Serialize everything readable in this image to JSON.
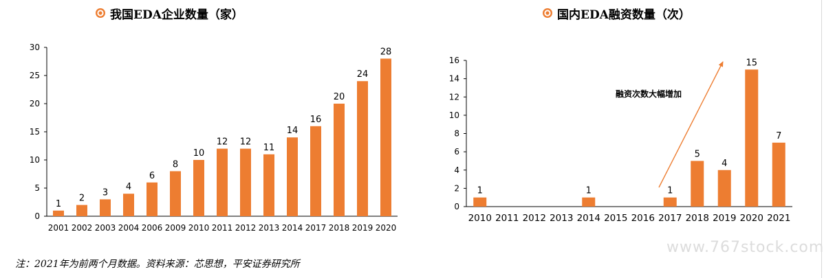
{
  "chart_data": [
    {
      "type": "bar",
      "title": "我国EDA企业数量（家）",
      "categories": [
        "2001",
        "2002",
        "2003",
        "2004",
        "2006",
        "2009",
        "2010",
        "2011",
        "2012",
        "2013",
        "2014",
        "2017",
        "2018",
        "2019",
        "2020"
      ],
      "values": [
        1,
        2,
        3,
        4,
        6,
        8,
        10,
        12,
        12,
        11,
        14,
        16,
        20,
        24,
        28
      ],
      "ylim": [
        0,
        30
      ],
      "yticks": [
        0,
        5,
        10,
        15,
        20,
        25,
        30
      ],
      "grid": false,
      "bar_color": "#ED7D31"
    },
    {
      "type": "bar",
      "title": "国内EDA融资数量（次）",
      "categories": [
        "2010",
        "2011",
        "2012",
        "2013",
        "2014",
        "2015",
        "2016",
        "2017",
        "2018",
        "2019",
        "2020",
        "2021"
      ],
      "values": [
        1,
        0,
        0,
        0,
        1,
        0,
        0,
        1,
        5,
        4,
        15,
        7
      ],
      "ylim": [
        0,
        16
      ],
      "yticks": [
        0,
        2,
        4,
        6,
        8,
        10,
        12,
        14,
        16
      ],
      "grid": false,
      "bar_color": "#ED7D31",
      "annotation": "融资次数大幅增加"
    }
  ],
  "note": "注：2021年为前两个月数据。资料来源：芯思想，平安证券研究所",
  "watermark": "www.767stock.com",
  "icon": "target-icon",
  "accent_color": "#ED7D31"
}
